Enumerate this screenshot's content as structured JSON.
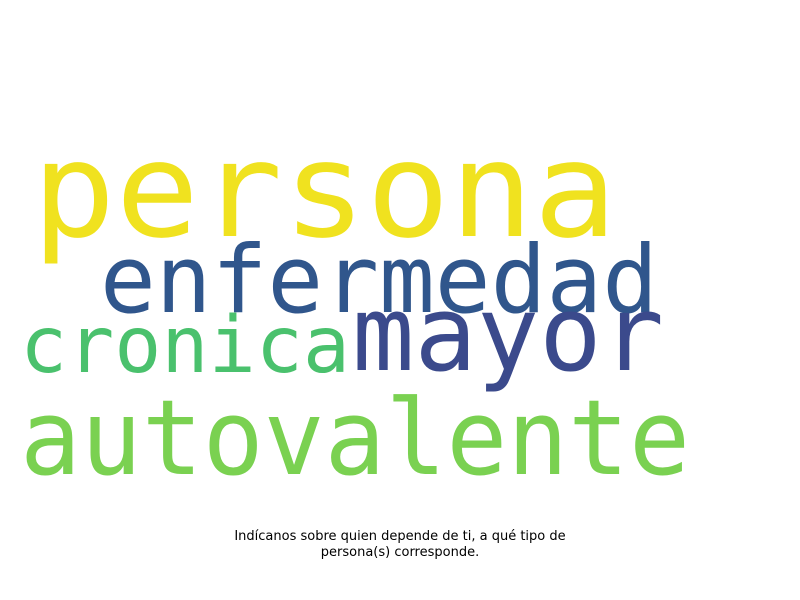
{
  "words": [
    {
      "text": "persona",
      "color": "#f0e21f"
    },
    {
      "text": "enfermedad",
      "color": "#30568c"
    },
    {
      "text": "mayor",
      "color": "#3b4a8c"
    },
    {
      "text": "cronica",
      "color": "#4ac16d"
    },
    {
      "text": "autovalente",
      "color": "#7ad151"
    }
  ],
  "caption": {
    "line1": "Indícanos sobre quien depende de ti, a qué tipo de",
    "line2": "persona(s) corresponde."
  }
}
